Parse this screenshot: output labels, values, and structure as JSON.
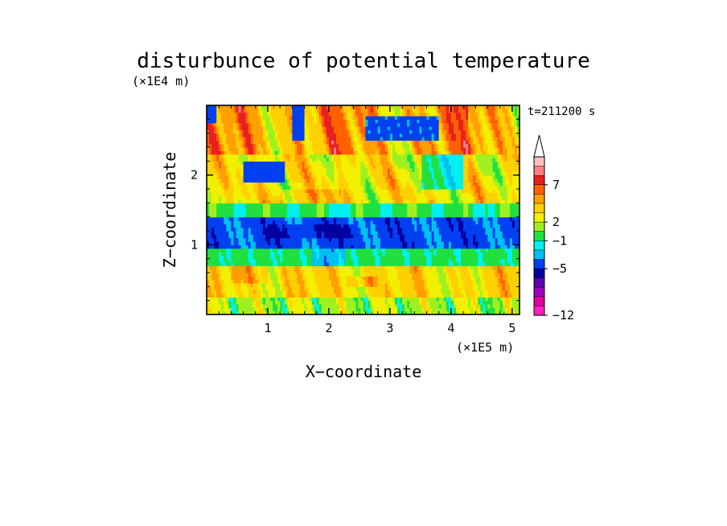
{
  "chart_data": {
    "type": "heatmap",
    "title": "disturbunce of potential temperature",
    "xlabel": "X−coordinate",
    "ylabel": "Z−coordinate",
    "x_units": "(×1E5 m)",
    "y_units": "(×1E4 m)",
    "time_label": "t=211200 s",
    "xlim": [
      0,
      5.12
    ],
    "ylim": [
      0,
      3.0
    ],
    "x_ticks": [
      1,
      2,
      3,
      4,
      5
    ],
    "y_ticks": [
      1,
      2
    ],
    "x_tick_labels": [
      "1",
      "2",
      "3",
      "4",
      "5"
    ],
    "y_tick_labels": [
      "1",
      "2"
    ],
    "colorbar": {
      "label_values": [
        7,
        2,
        -1,
        -5,
        -12
      ],
      "labels": [
        "7",
        "2",
        "−1",
        "−5",
        "−12"
      ],
      "colors_top_to_bottom": [
        "#ffc0c0",
        "#ff8080",
        "#e82020",
        "#ff6000",
        "#ffa000",
        "#ffd000",
        "#f0f000",
        "#a0f020",
        "#20e040",
        "#00f0f0",
        "#00c0f0",
        "#0040f0",
        "#0000a0",
        "#6000b0",
        "#a000c0",
        "#e000a0",
        "#ff20c0"
      ],
      "extend_top": true
    },
    "bands": [
      {
        "z_range": [
          0.0,
          0.25
        ],
        "value_class": "yellow-green mixed"
      },
      {
        "z_range": [
          0.25,
          0.65
        ],
        "value_class": "orange-yellow (positive)"
      },
      {
        "z_range": [
          0.65,
          0.95
        ],
        "value_class": "cyan (slightly negative)"
      },
      {
        "z_range": [
          0.95,
          1.35
        ],
        "value_class": "blue (negative, about -5)"
      },
      {
        "z_range": [
          1.35,
          1.6
        ],
        "value_class": "cyan/green"
      },
      {
        "z_range": [
          1.6,
          2.3
        ],
        "value_class": "yellow-orange with blue lenses"
      },
      {
        "z_range": [
          2.3,
          3.0
        ],
        "value_class": "orange/red with blue patches"
      }
    ]
  }
}
